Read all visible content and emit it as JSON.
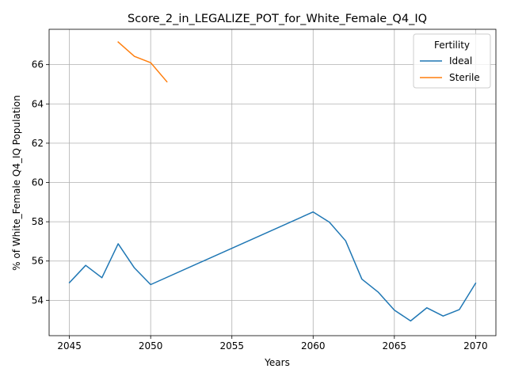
{
  "chart_data": {
    "type": "line",
    "title": "Score_2_in_LEGALIZE_POT_for_White_Female_Q4_IQ",
    "xlabel": "Years",
    "ylabel": "% of White_Female Q4_IQ Population",
    "xlim": [
      2043.75,
      2071.25
    ],
    "ylim": [
      52.2,
      67.8
    ],
    "xticks": [
      2045,
      2050,
      2055,
      2060,
      2065,
      2070
    ],
    "yticks": [
      54,
      56,
      58,
      60,
      62,
      64,
      66
    ],
    "grid": true,
    "legend": {
      "title": "Fertility",
      "placement": "top-right"
    },
    "series": [
      {
        "name": "Ideal",
        "color": "#1f77b4",
        "x": [
          2045,
          2046,
          2047,
          2048,
          2049,
          2050,
          2060,
          2061,
          2062,
          2063,
          2064,
          2065,
          2066,
          2067,
          2068,
          2069,
          2070
        ],
        "y": [
          54.9,
          55.78,
          55.15,
          56.88,
          55.65,
          54.8,
          58.5,
          57.98,
          57.03,
          55.08,
          54.42,
          53.5,
          52.95,
          53.62,
          53.2,
          53.53,
          54.87
        ]
      },
      {
        "name": "Sterile",
        "color": "#ff7f0e",
        "x": [
          2048,
          2049,
          2050,
          2051
        ],
        "y": [
          67.15,
          66.42,
          66.1,
          65.13
        ]
      }
    ]
  }
}
